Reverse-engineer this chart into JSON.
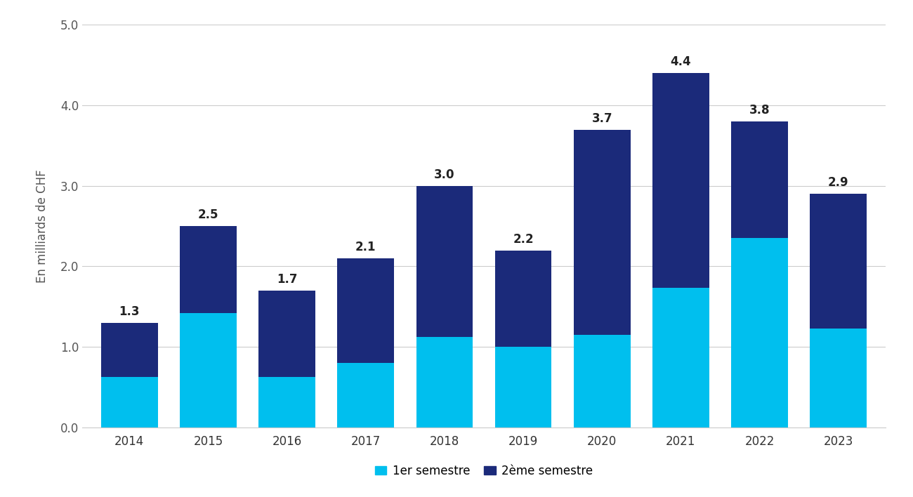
{
  "years": [
    "2014",
    "2015",
    "2016",
    "2017",
    "2018",
    "2019",
    "2020",
    "2021",
    "2022",
    "2023"
  ],
  "sem1": [
    0.63,
    1.42,
    0.63,
    0.8,
    1.12,
    1.0,
    1.15,
    1.73,
    2.35,
    1.23
  ],
  "sem2": [
    0.67,
    1.08,
    1.07,
    1.3,
    1.88,
    1.2,
    2.55,
    2.67,
    1.45,
    1.67
  ],
  "totals": [
    1.3,
    2.5,
    1.7,
    2.1,
    3.0,
    2.2,
    3.7,
    4.4,
    3.8,
    2.9
  ],
  "color_sem1": "#00BFEE",
  "color_sem2": "#1B2A7A",
  "ylabel": "En milliards de CHF",
  "ylim": [
    0,
    5.0
  ],
  "yticks": [
    0.0,
    1.0,
    2.0,
    3.0,
    4.0,
    5.0
  ],
  "legend_sem1": "1er semestre",
  "legend_sem2": "2ème semestre",
  "background_color": "#ffffff",
  "bar_width": 0.72,
  "label_fontsize": 12,
  "tick_fontsize": 12,
  "ylabel_fontsize": 12
}
